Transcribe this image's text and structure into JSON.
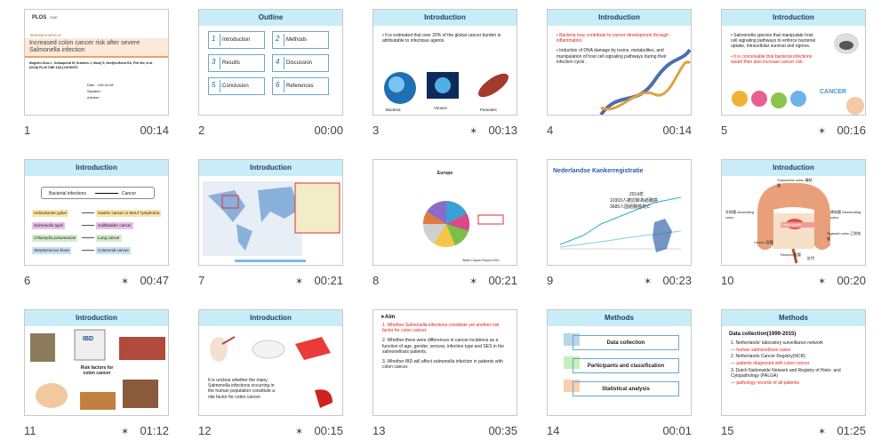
{
  "slides": [
    {
      "number": 1,
      "time": "00:14",
      "starred": false,
      "logo": "PLOS",
      "logo_sub": "ONE",
      "label": "RESEARCH ARTICLE",
      "heading": "Increased colon cancer risk after severe Salmonella infection",
      "authors": "Mughini-Gras L, Schaapveld M, Kramers J, Mooij S, Neefjes-Borst EA, Pelt Wv, et al. (2018) PLoS ONE 13(1):e0190370",
      "info": [
        "Date : 108.04.08",
        "Speaker :",
        "Advisor :"
      ]
    },
    {
      "number": 2,
      "time": "00:00",
      "starred": false,
      "title": "Outline",
      "boxes": [
        {
          "num": "1",
          "text": "Introduction"
        },
        {
          "num": "2",
          "text": "Methods"
        },
        {
          "num": "3",
          "text": "Results"
        },
        {
          "num": "4",
          "text": "Discussion"
        },
        {
          "num": "5",
          "text": "Conclusion"
        },
        {
          "num": "6",
          "text": "References"
        }
      ]
    },
    {
      "number": 3,
      "time": "00:13",
      "starred": true,
      "title": "Introduction",
      "bullets": [
        {
          "text": "• It is estimated that over 20% of the global cancer burden is attributable to infectious agents."
        }
      ],
      "captions": [
        "Bacteria",
        "Viruses",
        "Parasites"
      ]
    },
    {
      "number": 4,
      "time": "00:14",
      "starred": false,
      "title": "Introduction",
      "bullets": [
        {
          "text": "• Bacteria may contribute to cancer development through inflammation.",
          "color": "#e0201c"
        },
        {
          "text": "• Induction of DNA damage by toxins, metabolites, and manipulation of host cell signaling pathways during their infection cycle ."
        }
      ]
    },
    {
      "number": 5,
      "time": "00:16",
      "starred": true,
      "title": "Introduction",
      "bullets": [
        {
          "text": "• Salmonella species that manipulate host cell signaling pathways to enforce bacterial uptake, intracellular survival and egress."
        },
        {
          "text": "• It is conceivable that bacterial infections would then also increase cancer risk.",
          "color": "#e0201c"
        }
      ],
      "captions": [
        "CANCER"
      ]
    },
    {
      "number": 6,
      "time": "00:47",
      "starred": true,
      "title": "Introduction",
      "flow": {
        "from": "Bacterial infections",
        "to": "Cancer"
      },
      "pairs": [
        {
          "from": "Helicobacter pylori",
          "to": "Gastric cancer or MALT lymphoma",
          "color": "#fce4a8"
        },
        {
          "from": "Salmonella typhi",
          "to": "Gallbladder cancer",
          "color": "#e8c0ea"
        },
        {
          "from": "Chlamydia pneumoniae",
          "to": "Lung cancer",
          "color": "#d6ebcc"
        },
        {
          "from": "Streptococcus bovis",
          "to": "Colorectal cancer",
          "color": "#c7e0f3"
        }
      ]
    },
    {
      "number": 7,
      "time": "00:21",
      "starred": true,
      "title": "Introduction"
    },
    {
      "number": 8,
      "time": "00:21",
      "starred": true,
      "title": "Europe",
      "captions": [
        "World Cancer Report 2014"
      ]
    },
    {
      "number": 9,
      "time": "00:23",
      "starred": true,
      "title": "Nederlandse Kankerregistratie",
      "notes": [
        "2014年",
        "10303人被診斷為結腸癌",
        "3685人因結腸癌死亡"
      ]
    },
    {
      "number": 10,
      "time": "00:20",
      "starred": true,
      "title": "Introduction",
      "labels": [
        "Transverse colon 橫結腸",
        "升結腸 Ascending colon",
        "Colon cancer",
        "降結腸 Descending colon",
        "Cecum 盲腸",
        "Sigmoid colon 乙狀結腸",
        "Rectum 直腸",
        "肛門"
      ]
    },
    {
      "number": 11,
      "time": "01:12",
      "starred": true,
      "title": "Introduction",
      "captions": [
        "IBD",
        "Risk factors for colon cancer"
      ]
    },
    {
      "number": 12,
      "time": "00:15",
      "starred": true,
      "title": "Introduction",
      "bullets": [
        {
          "text": "It is unclear whether the many Salmonella infections occurring in the human population constitute a risk factor for colon cancer."
        }
      ]
    },
    {
      "number": 13,
      "time": "00:35",
      "starred": false,
      "heading": "➤Aim",
      "bullets": [
        {
          "text": "1.  Whether Salmonella infections constitute yet another risk factor for colon cancer.",
          "color": "#e0201c"
        },
        {
          "text": "2.  Whether there were differences in cancer incidence as a function of age, gender, serovar, infection type and SES in the salmonellosis patients."
        },
        {
          "text": "3.  Whether IBD will affect salmonella infection in patients with colon cancer."
        }
      ]
    },
    {
      "number": 14,
      "time": "00:01",
      "starred": false,
      "title": "Methods",
      "boxes": [
        {
          "text": "Data collection",
          "color": "#b7d7e8"
        },
        {
          "text": "Participants and classification",
          "color": "#c6efb9"
        },
        {
          "text": "Statistical analysis",
          "color": "#f9cfae"
        }
      ]
    },
    {
      "number": 15,
      "time": "01:25",
      "starred": true,
      "title": "Methods",
      "heading": "Data collection(1999-2015)",
      "bullets": [
        {
          "text": "1.  Netherlands' laboratory surveillance network"
        },
        {
          "text": "  —  human salmonellosis cases",
          "color": "#e0201c"
        },
        {
          "text": "2.  Netherlands Cancer Registry(NCR)"
        },
        {
          "text": "  —  patients diagnosed with colon cancer",
          "color": "#e0201c"
        },
        {
          "text": "3.  Dutch Nationwide Network and Registry of Histo- and Cytopathology (PALGA)"
        },
        {
          "text": "  —  pathology records of all patients",
          "color": "#e0201c"
        }
      ]
    }
  ]
}
